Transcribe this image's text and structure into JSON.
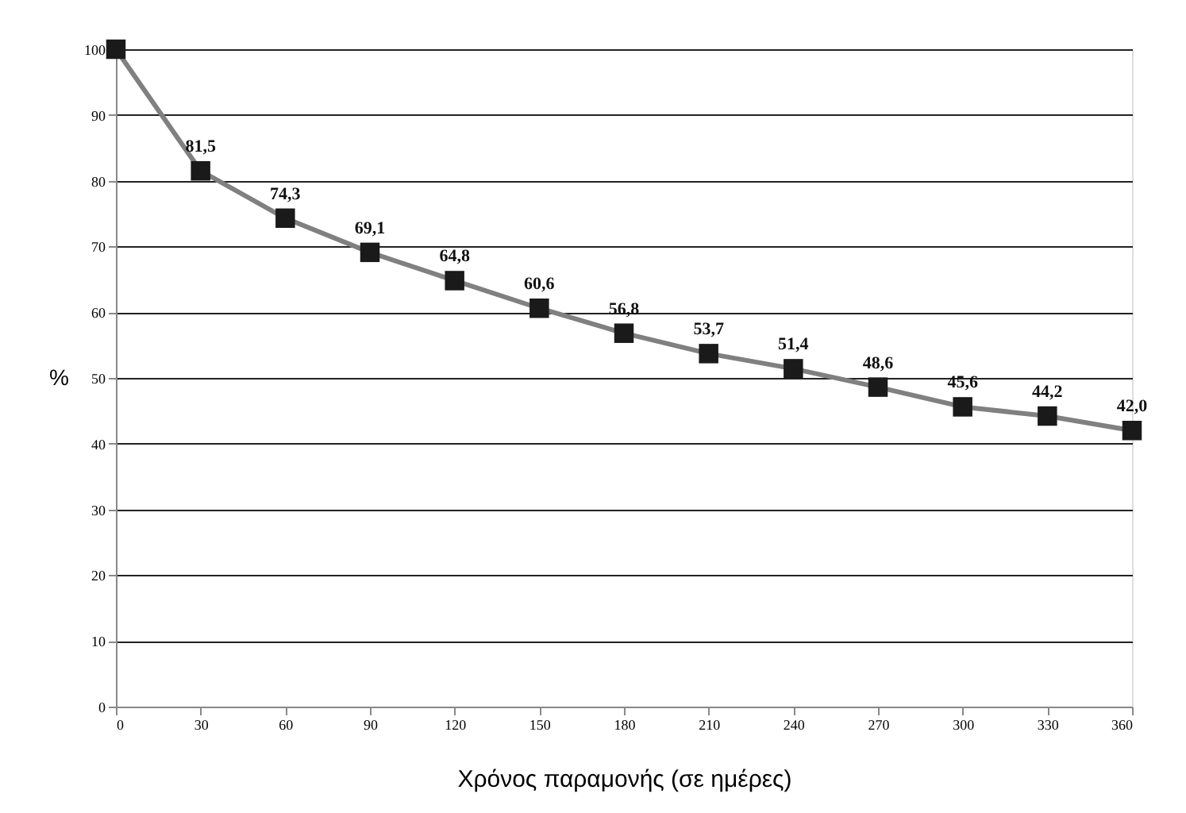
{
  "chart_data": {
    "type": "line",
    "xlabel": "Χρόνος παραμονής (σε ημέρες)",
    "ylabel": "%",
    "x": [
      0,
      30,
      60,
      90,
      120,
      150,
      180,
      210,
      240,
      270,
      300,
      330,
      360
    ],
    "series": [
      {
        "color": "#808080",
        "values": [
          100,
          81.5,
          74.3,
          69.1,
          64.8,
          60.6,
          56.8,
          53.7,
          51.4,
          48.6,
          45.6,
          44.2,
          42.0
        ],
        "value_labels": [
          null,
          "81,5",
          "74,3",
          "69,1",
          "64,8",
          "60,6",
          "56,8",
          "53,7",
          "51,4",
          "48,6",
          "45,6",
          "44,2",
          "42,0"
        ]
      }
    ],
    "xlim": [
      0,
      360
    ],
    "xticks": [
      0,
      30,
      60,
      90,
      120,
      150,
      180,
      210,
      240,
      270,
      300,
      330,
      360
    ],
    "ylim": [
      0,
      100
    ],
    "yticks": [
      0,
      10,
      20,
      30,
      40,
      50,
      60,
      70,
      80,
      90,
      100
    ],
    "grid": "y",
    "marker": "square",
    "line_style": "solid"
  }
}
